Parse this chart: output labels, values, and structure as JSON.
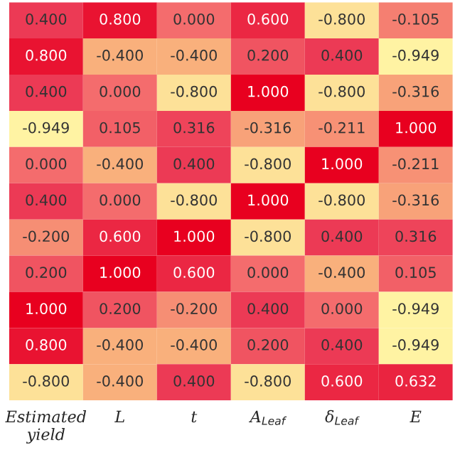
{
  "chart_data": {
    "type": "heatmap",
    "categories": [
      "Estimated yield",
      "L",
      "t",
      "A$_{Leaf}$",
      "δ$_{Leaf}$",
      "E"
    ],
    "y_categories": [
      null,
      null,
      null,
      null,
      null,
      null,
      null,
      null,
      null,
      null,
      null
    ],
    "cells": [
      [
        0.4,
        0.8,
        0.0,
        0.6,
        -0.8,
        -0.105
      ],
      [
        0.8,
        -0.4,
        -0.4,
        0.2,
        0.4,
        -0.949
      ],
      [
        0.4,
        0.0,
        -0.8,
        1.0,
        -0.8,
        -0.316
      ],
      [
        -0.949,
        0.105,
        0.316,
        -0.316,
        -0.211,
        1.0
      ],
      [
        0.0,
        -0.4,
        0.4,
        -0.8,
        1.0,
        -0.211
      ],
      [
        0.4,
        0.0,
        -0.8,
        1.0,
        -0.8,
        -0.316
      ],
      [
        -0.2,
        0.6,
        1.0,
        -0.8,
        0.4,
        0.316
      ],
      [
        0.2,
        1.0,
        0.6,
        0.0,
        -0.4,
        0.105
      ],
      [
        1.0,
        0.2,
        -0.2,
        0.4,
        0.0,
        -0.949
      ],
      [
        0.8,
        -0.4,
        -0.4,
        0.2,
        0.4,
        -0.949
      ],
      [
        -0.8,
        -0.4,
        0.4,
        -0.8,
        0.6,
        0.632
      ]
    ],
    "cell_labels": [
      [
        "0.400",
        "0.800",
        "0.000",
        "0.600",
        "-0.800",
        "-0.105"
      ],
      [
        "0.800",
        "-0.400",
        "-0.400",
        "0.200",
        "0.400",
        "-0.949"
      ],
      [
        "0.400",
        "0.000",
        "-0.800",
        "1.000",
        "-0.800",
        "-0.316"
      ],
      [
        "-0.949",
        "0.105",
        "0.316",
        "-0.316",
        "-0.211",
        "1.000"
      ],
      [
        "0.000",
        "-0.400",
        "0.400",
        "-0.800",
        "1.000",
        "-0.211"
      ],
      [
        "0.400",
        "0.000",
        "-0.800",
        "1.000",
        "-0.800",
        "-0.316"
      ],
      [
        "-0.200",
        "0.600",
        "1.000",
        "-0.800",
        "0.400",
        "0.316"
      ],
      [
        "0.200",
        "1.000",
        "0.600",
        "0.000",
        "-0.400",
        "0.105"
      ],
      [
        "1.000",
        "0.200",
        "-0.200",
        "0.400",
        "0.000",
        "-0.949"
      ],
      [
        "0.800",
        "-0.400",
        "-0.400",
        "0.200",
        "0.400",
        "-0.949"
      ],
      [
        "-0.800",
        "-0.400",
        "0.400",
        "-0.800",
        "0.600",
        "0.632"
      ]
    ]
  }
}
